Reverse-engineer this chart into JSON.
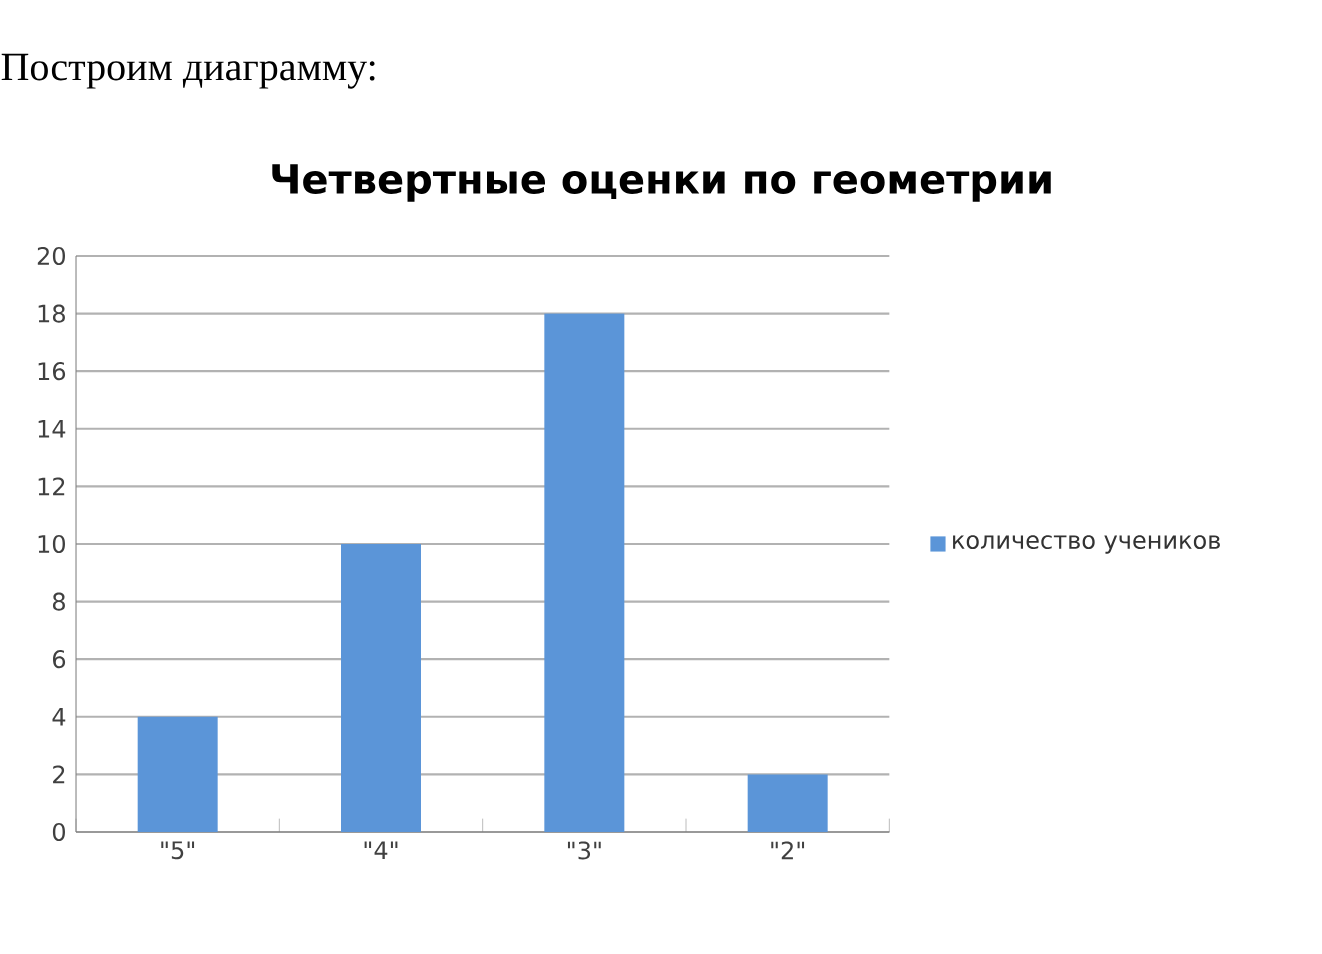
{
  "chart_data": {
    "type": "bar",
    "title": "Четвертные оценки по геометрии",
    "annotations": [
      "Построим диаграмму:"
    ],
    "categories": [
      "\"5\"",
      "\"4\"",
      "\"3\"",
      "\"2\""
    ],
    "series": [
      {
        "name": "количество учеников",
        "color": "#5b95d8",
        "values": [
          4,
          10,
          18,
          2
        ]
      }
    ],
    "ylim": [
      0,
      20
    ],
    "yticks": [
      0,
      2,
      4,
      6,
      8,
      10,
      12,
      14,
      16,
      18,
      20
    ],
    "grid": "y",
    "legend": "right"
  }
}
